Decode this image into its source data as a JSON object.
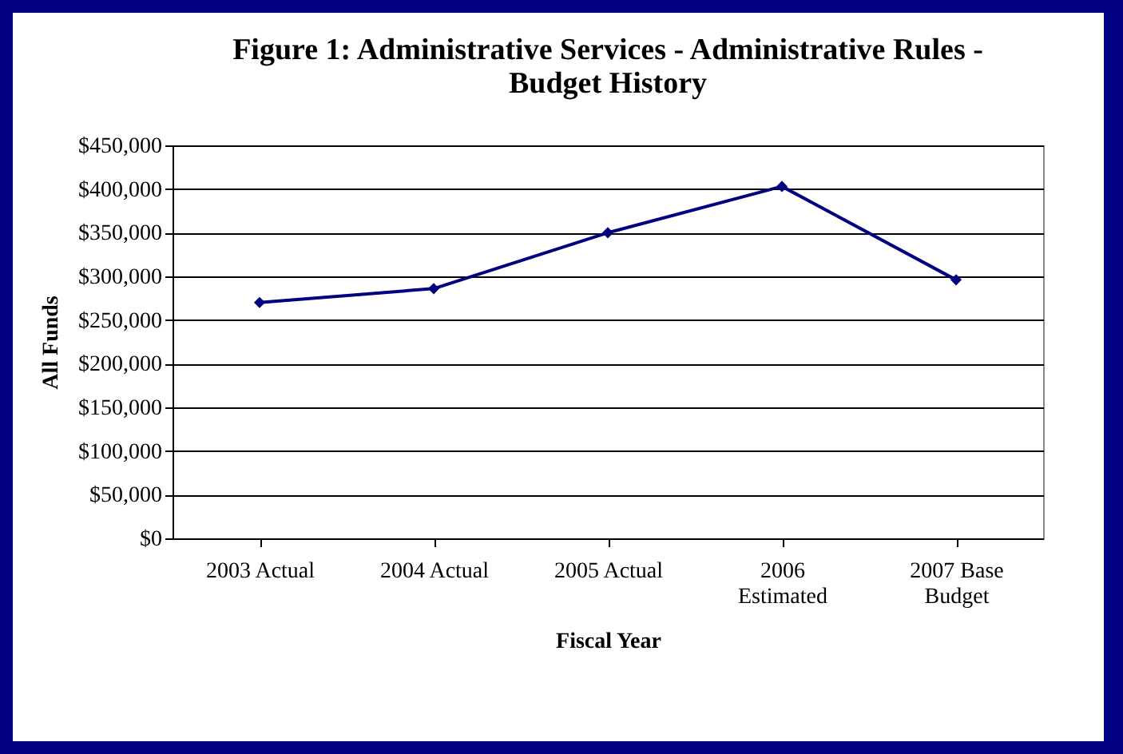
{
  "chart_data": {
    "type": "line",
    "title": "Figure 1: Administrative Services - Administrative Rules - Budget History",
    "xlabel": "Fiscal Year",
    "ylabel": "All Funds",
    "categories": [
      "2003 Actual",
      "2004 Actual",
      "2005 Actual",
      "2006 Estimated",
      "2007 Base Budget"
    ],
    "series": [
      {
        "color": "#000080",
        "values": [
          270000,
          286000,
          350000,
          403000,
          296000
        ]
      }
    ],
    "ylim": [
      0,
      450000
    ],
    "yticks": [
      {
        "value": 0,
        "label": "$0"
      },
      {
        "value": 50000,
        "label": "$50,000"
      },
      {
        "value": 100000,
        "label": "$100,000"
      },
      {
        "value": 150000,
        "label": "$150,000"
      },
      {
        "value": 200000,
        "label": "$200,000"
      },
      {
        "value": 250000,
        "label": "$250,000"
      },
      {
        "value": 300000,
        "label": "$300,000"
      },
      {
        "value": 350000,
        "label": "$350,000"
      },
      {
        "value": 400000,
        "label": "$400,000"
      },
      {
        "value": 450000,
        "label": "$450,000"
      }
    ],
    "grid": "y",
    "marker": "diamond",
    "line_style": "solid"
  }
}
